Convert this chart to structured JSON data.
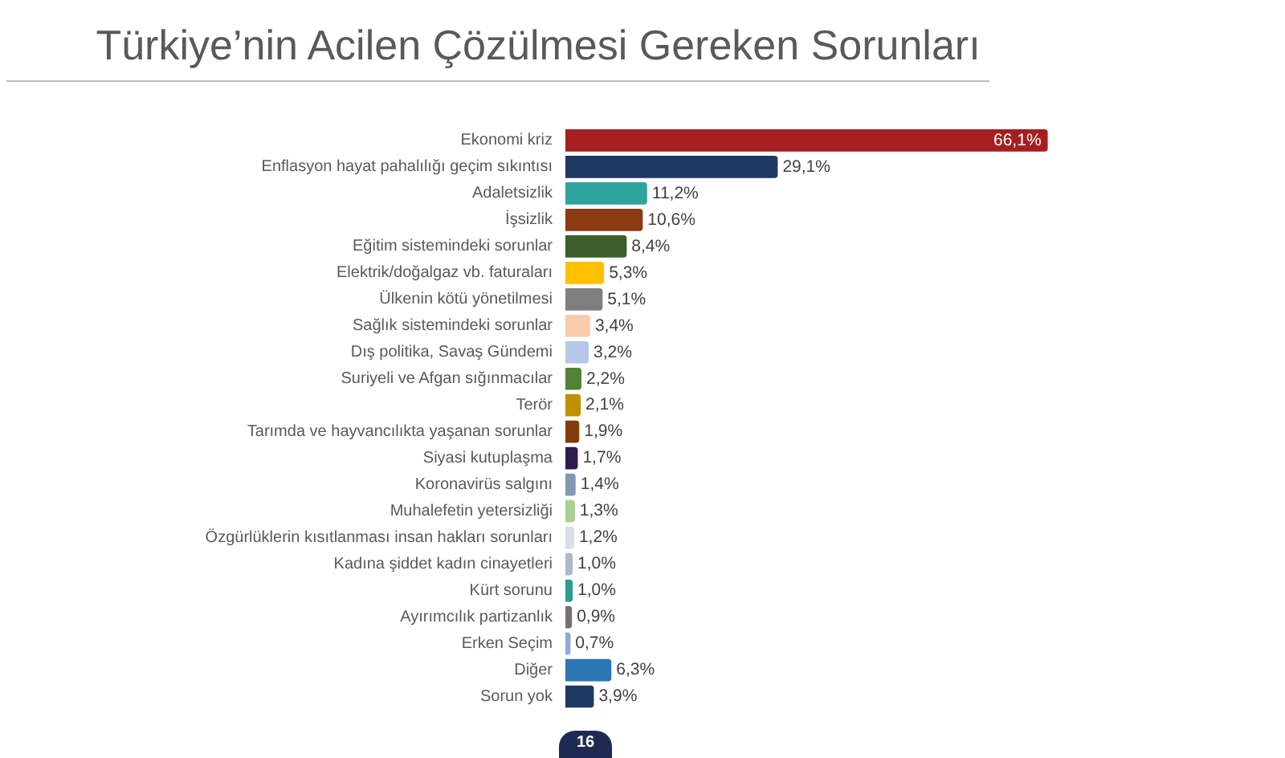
{
  "chart_data": {
    "type": "bar",
    "orientation": "horizontal",
    "title": "Türkiye’nin Acilen Çözülmesi Gereken Sorunları",
    "categories": [
      "Ekonomi kriz",
      "Enflasyon hayat pahalılığı geçim sıkıntısı",
      "Adaletsizlik",
      "İşsizlik",
      "Eğitim sistemindeki sorunlar",
      "Elektrik/doğalgaz vb. faturaları",
      "Ülkenin kötü yönetilmesi",
      "Sağlık sistemindeki sorunlar",
      "Dış politika, Savaş Gündemi",
      "Suriyeli ve Afgan sığınmacılar",
      "Terör",
      "Tarımda ve hayvancılıkta yaşanan sorunlar",
      "Siyasi kutuplaşma",
      "Koronavirüs salgını",
      "Muhalefetin yetersizliği",
      "Özgürlüklerin kısıtlanması insan hakları sorunları",
      "Kadına şiddet kadın cinayetleri",
      "Kürt sorunu",
      "Ayırımcılık partizanlık",
      "Erken Seçim",
      "Diğer",
      "Sorun yok"
    ],
    "values": [
      66.1,
      29.1,
      11.2,
      10.6,
      8.4,
      5.3,
      5.1,
      3.4,
      3.2,
      2.2,
      2.1,
      1.9,
      1.7,
      1.4,
      1.3,
      1.2,
      1.0,
      1.0,
      0.9,
      0.7,
      6.3,
      3.9
    ],
    "value_labels": [
      "66,1%",
      "29,1%",
      "11,2%",
      "10,6%",
      "8,4%",
      "5,3%",
      "5,1%",
      "3,4%",
      "3,2%",
      "2,2%",
      "2,1%",
      "1,9%",
      "1,7%",
      "1,4%",
      "1,3%",
      "1,2%",
      "1,0%",
      "1,0%",
      "0,9%",
      "0,7%",
      "6,3%",
      "3,9%"
    ],
    "colors": [
      "#a51e22",
      "#1f3864",
      "#2fa39d",
      "#8b3a12",
      "#3b5e2b",
      "#ffc000",
      "#7f7f7f",
      "#f8cbad",
      "#b4c7e7",
      "#548235",
      "#bf9000",
      "#843c0c",
      "#2f1b4e",
      "#8497b0",
      "#a9d18e",
      "#d9dde6",
      "#adb9ca",
      "#2a9d8f",
      "#767171",
      "#8faadc",
      "#2e75b6",
      "#203864"
    ],
    "annotations": [
      "16"
    ]
  }
}
